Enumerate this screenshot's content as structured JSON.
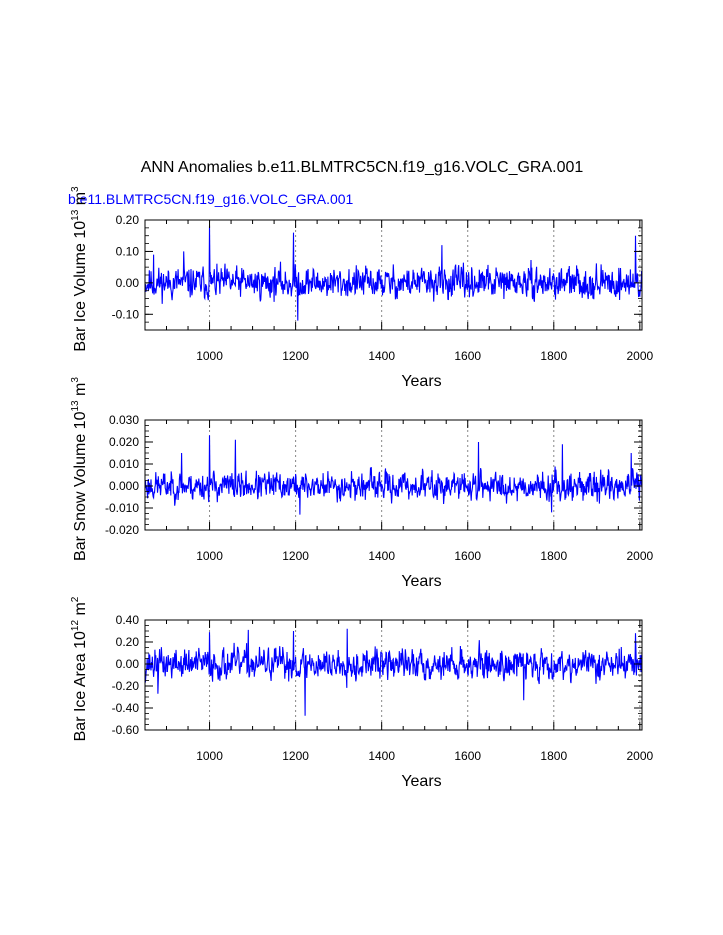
{
  "title": "ANN Anomalies b.e11.BLMTRC5CN.f19_g16.VOLC_GRA.001",
  "subtitle": "b.e11.BLMTRC5CN.f19_g16.VOLC_GRA.001",
  "colors": {
    "series": "#0000ff",
    "axis": "#000000",
    "refline": "#888888",
    "subtitle": "#0000ff"
  },
  "chart_data": [
    {
      "type": "line",
      "ylabel_main": "Bar Ice Volume 10",
      "ylabel_exp": "13",
      "ylabel_unit": " m",
      "ylabel_unit_exp": "3",
      "xlabel": "Years",
      "xlim": [
        850,
        2005
      ],
      "ylim": [
        -0.15,
        0.2
      ],
      "xticks": [
        1000,
        1200,
        1400,
        1600,
        1800,
        2000
      ],
      "xtick_labels": [
        "1000",
        "1200",
        "1400",
        "1600",
        "1800",
        "2000"
      ],
      "yticks": [
        -0.1,
        0.0,
        0.1,
        0.2
      ],
      "ytick_labels": [
        "-0.10",
        "0.00",
        "0.10",
        "0.20"
      ],
      "reference_lines_x": [
        1000,
        1200,
        1400,
        1600,
        1800,
        2000
      ],
      "series": [
        {
          "x_start": 850,
          "x_step": 1,
          "amplitude": 0.035,
          "seed": 11,
          "spikes": [
            [
              1000,
              0.18
            ],
            [
              1195,
              0.16
            ],
            [
              1205,
              -0.12
            ],
            [
              940,
              0.1
            ],
            [
              1540,
              0.12
            ],
            [
              1990,
              0.15
            ],
            [
              870,
              0.09
            ]
          ]
        }
      ]
    },
    {
      "type": "line",
      "ylabel_main": "Bar Snow Volume 10",
      "ylabel_exp": "13",
      "ylabel_unit": " m",
      "ylabel_unit_exp": "3",
      "xlabel": "Years",
      "xlim": [
        850,
        2005
      ],
      "ylim": [
        -0.02,
        0.03
      ],
      "xticks": [
        1000,
        1200,
        1400,
        1600,
        1800,
        2000
      ],
      "xtick_labels": [
        "1000",
        "1200",
        "1400",
        "1600",
        "1800",
        "2000"
      ],
      "yticks": [
        -0.02,
        -0.01,
        0.0,
        0.01,
        0.02,
        0.03
      ],
      "ytick_labels": [
        "-0.020",
        "-0.010",
        "0.000",
        "0.010",
        "0.020",
        "0.030"
      ],
      "reference_lines_x": [
        1000,
        1200,
        1400,
        1600,
        1800,
        2000
      ],
      "series": [
        {
          "x_start": 850,
          "x_step": 1,
          "amplitude": 0.0045,
          "seed": 23,
          "spikes": [
            [
              1000,
              0.023
            ],
            [
              1060,
              0.021
            ],
            [
              1625,
              0.02
            ],
            [
              1820,
              0.019
            ],
            [
              1210,
              -0.013
            ],
            [
              1795,
              -0.012
            ],
            [
              1980,
              0.015
            ],
            [
              935,
              0.015
            ]
          ]
        }
      ]
    },
    {
      "type": "line",
      "ylabel_main": "Bar Ice Area 10",
      "ylabel_exp": "12",
      "ylabel_unit": " m",
      "ylabel_unit_exp": "2",
      "xlabel": "Years",
      "xlim": [
        850,
        2005
      ],
      "ylim": [
        -0.6,
        0.4
      ],
      "xticks": [
        1000,
        1200,
        1400,
        1600,
        1800,
        2000
      ],
      "xtick_labels": [
        "1000",
        "1200",
        "1400",
        "1600",
        "1800",
        "2000"
      ],
      "yticks": [
        -0.6,
        -0.4,
        -0.2,
        0.0,
        0.2,
        0.4
      ],
      "ytick_labels": [
        "-0.60",
        "-0.40",
        "-0.20",
        "0.00",
        "0.20",
        "0.40"
      ],
      "reference_lines_x": [
        1000,
        1200,
        1400,
        1600,
        1800,
        2000
      ],
      "series": [
        {
          "x_start": 850,
          "x_step": 1,
          "amplitude": 0.1,
          "seed": 37,
          "spikes": [
            [
              1000,
              0.29
            ],
            [
              1195,
              0.3
            ],
            [
              1222,
              -0.47
            ],
            [
              1320,
              0.32
            ],
            [
              1730,
              -0.33
            ],
            [
              1990,
              0.28
            ],
            [
              1090,
              0.31
            ],
            [
              880,
              -0.27
            ]
          ]
        }
      ]
    }
  ]
}
